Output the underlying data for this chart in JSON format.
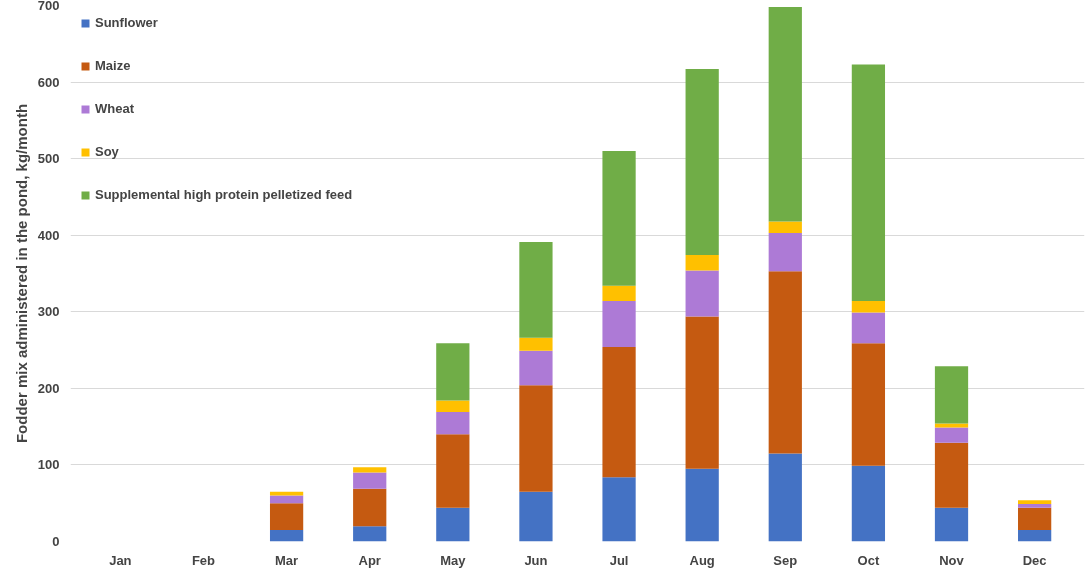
{
  "chart_data": {
    "type": "bar",
    "stacked": true,
    "ylabel": "Fodder mix administered in the pond, kg/month",
    "categories": [
      "Jan",
      "Feb",
      "Mar",
      "Apr",
      "May",
      "Jun",
      "Jul",
      "Aug",
      "Sep",
      "Oct",
      "Nov",
      "Dec"
    ],
    "series": [
      {
        "name": "Sunflower",
        "color": "#4472c4",
        "values": [
          0,
          0,
          15,
          20,
          44,
          65,
          84,
          95,
          115,
          99,
          44,
          15
        ]
      },
      {
        "name": "Maize",
        "color": "#c55a11",
        "values": [
          0,
          0,
          35,
          49,
          96,
          139,
          170,
          199,
          238,
          160,
          85,
          29
        ]
      },
      {
        "name": "Wheat",
        "color": "#ad7ad6",
        "values": [
          0,
          0,
          10,
          21,
          29,
          45,
          60,
          60,
          50,
          40,
          20,
          5
        ]
      },
      {
        "name": "Soy",
        "color": "#ffc000",
        "values": [
          0,
          0,
          5,
          7,
          15,
          17,
          20,
          20,
          15,
          15,
          5,
          5
        ]
      },
      {
        "name": "Supplemental high protein pelletized feed",
        "color": "#70ad47",
        "values": [
          0,
          0,
          0,
          0,
          75,
          125,
          176,
          243,
          280,
          309,
          75,
          0
        ]
      }
    ],
    "ylim": [
      0,
      700
    ],
    "yticks": [
      0,
      100,
      200,
      300,
      400,
      500,
      600,
      700
    ],
    "grid": "y",
    "legend": "top left"
  }
}
